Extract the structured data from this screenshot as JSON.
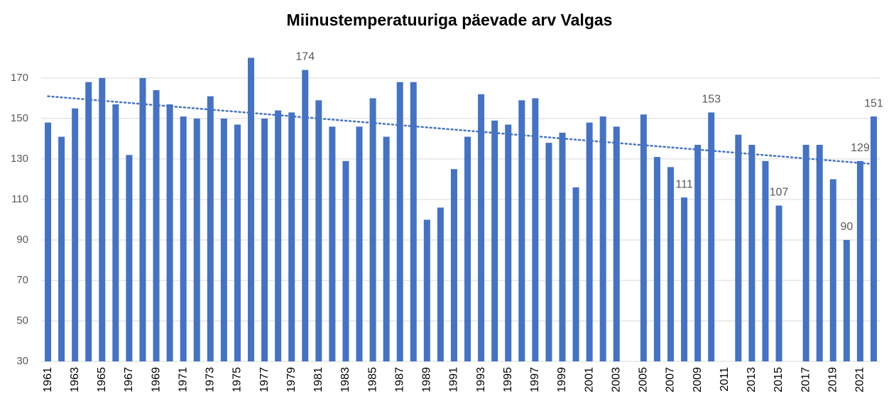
{
  "chart_data": {
    "type": "bar",
    "title": "Miinustemperatuuriga päevade arv Valgas",
    "categories": [
      "1961",
      null,
      "1963",
      null,
      "1965",
      null,
      "1967",
      null,
      "1969",
      null,
      "1971",
      null,
      "1973",
      null,
      "1975",
      null,
      "1977",
      null,
      "1979",
      null,
      "1981",
      null,
      "1983",
      null,
      "1985",
      null,
      "1987",
      null,
      "1989",
      null,
      "1991",
      null,
      "1993",
      null,
      "1995",
      null,
      "1997",
      null,
      "1999",
      null,
      "2001",
      null,
      "2003",
      null,
      "2005",
      null,
      "2007",
      null,
      "2009",
      null,
      "2011",
      null,
      "2013",
      null,
      "2015",
      null,
      "2017",
      null,
      "2019",
      null,
      "2021",
      null
    ],
    "values": [
      148,
      141,
      155,
      168,
      170,
      157,
      132,
      170,
      164,
      157,
      151,
      150,
      161,
      150,
      147,
      180,
      150,
      154,
      153,
      174,
      159,
      146,
      129,
      146,
      160,
      141,
      168,
      168,
      100,
      106,
      125,
      141,
      162,
      149,
      147,
      159,
      160,
      138,
      143,
      116,
      148,
      151,
      146,
      null,
      152,
      131,
      126,
      111,
      137,
      153,
      null,
      142,
      137,
      129,
      107,
      null,
      137,
      137,
      120,
      90,
      129,
      151
    ],
    "value_labels": [
      null,
      null,
      null,
      null,
      null,
      null,
      null,
      null,
      null,
      null,
      null,
      null,
      null,
      null,
      null,
      null,
      null,
      null,
      null,
      174,
      null,
      null,
      null,
      null,
      null,
      null,
      null,
      null,
      null,
      null,
      null,
      null,
      null,
      null,
      null,
      null,
      null,
      null,
      null,
      null,
      null,
      null,
      null,
      null,
      null,
      null,
      null,
      111,
      null,
      153,
      null,
      null,
      null,
      null,
      107,
      null,
      null,
      null,
      null,
      90,
      129,
      151
    ],
    "color": "#4472c4",
    "trendline": {
      "start": 161,
      "end": 127.5,
      "color": "#4472c4"
    },
    "ylim": [
      30,
      184
    ],
    "yticks": [
      30,
      50,
      70,
      90,
      110,
      130,
      150,
      170
    ],
    "grid": true
  }
}
